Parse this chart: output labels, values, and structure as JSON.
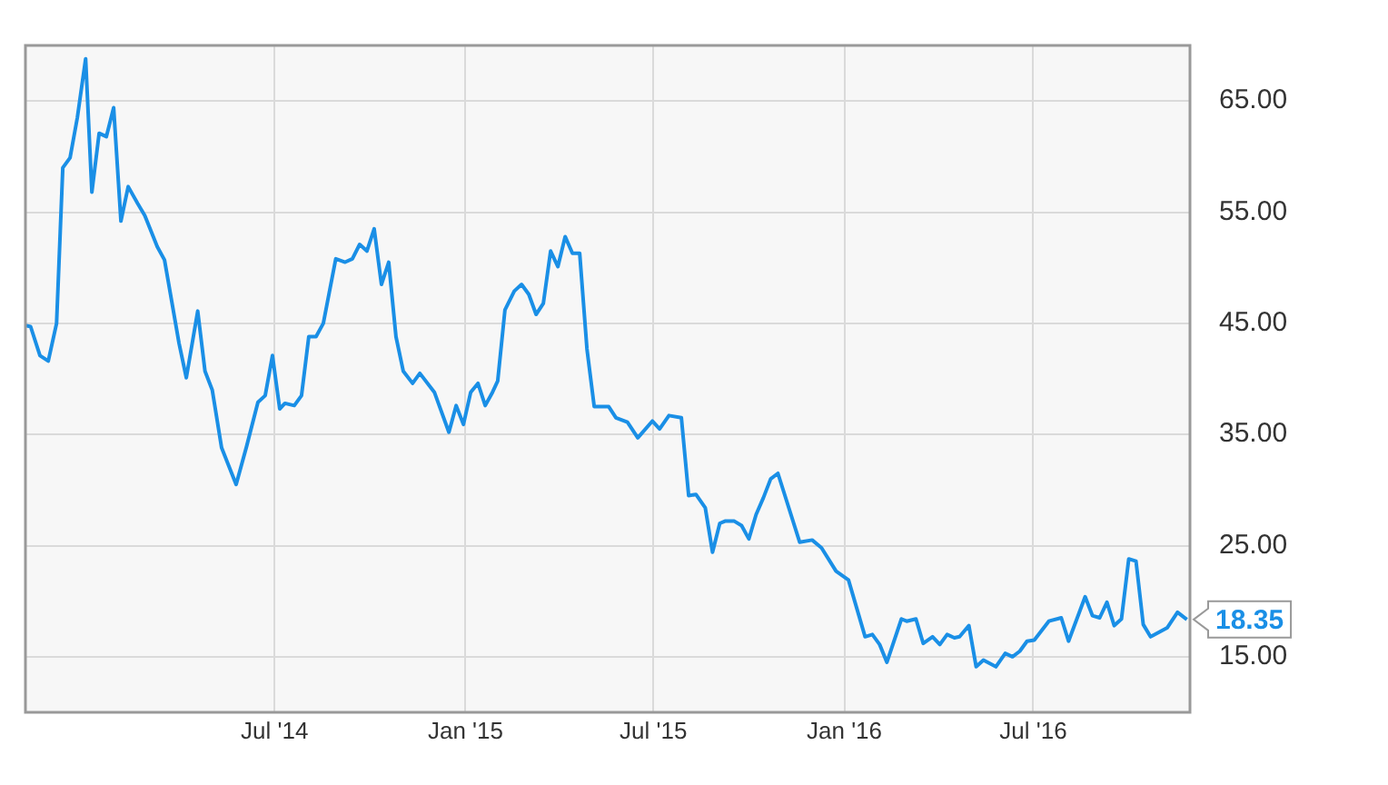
{
  "chart_data": {
    "type": "line",
    "x": [
      "2013-11-03",
      "2013-11-08",
      "2013-11-17",
      "2013-11-25",
      "2013-12-03",
      "2013-12-09",
      "2013-12-16",
      "2013-12-23",
      "2013-12-31",
      "2014-01-06",
      "2014-01-13",
      "2014-01-20",
      "2014-01-27",
      "2014-02-03",
      "2014-02-10",
      "2014-02-19",
      "2014-02-26",
      "2014-03-10",
      "2014-03-17",
      "2014-03-31",
      "2014-04-07",
      "2014-04-18",
      "2014-04-25",
      "2014-05-02",
      "2014-05-11",
      "2014-05-25",
      "2014-06-04",
      "2014-06-15",
      "2014-06-22",
      "2014-06-29",
      "2014-07-06",
      "2014-07-11",
      "2014-07-20",
      "2014-07-27",
      "2014-08-03",
      "2014-08-10",
      "2014-08-17",
      "2014-08-29",
      "2014-09-07",
      "2014-09-14",
      "2014-09-21",
      "2014-09-28",
      "2014-10-05",
      "2014-10-12",
      "2014-10-19",
      "2014-10-26",
      "2014-11-02",
      "2014-11-11",
      "2014-11-18",
      "2014-12-02",
      "2014-12-16",
      "2014-12-23",
      "2014-12-30",
      "2015-01-06",
      "2015-01-13",
      "2015-01-20",
      "2015-01-27",
      "2015-02-01",
      "2015-02-08",
      "2015-02-17",
      "2015-02-24",
      "2015-03-03",
      "2015-03-10",
      "2015-03-17",
      "2015-03-24",
      "2015-03-31",
      "2015-04-07",
      "2015-04-14",
      "2015-04-21",
      "2015-04-28",
      "2015-05-05",
      "2015-05-19",
      "2015-05-26",
      "2015-06-06",
      "2015-06-16",
      "2015-06-30",
      "2015-07-07",
      "2015-07-16",
      "2015-07-28",
      "2015-08-04",
      "2015-08-11",
      "2015-08-20",
      "2015-08-27",
      "2015-09-03",
      "2015-09-08",
      "2015-09-17",
      "2015-09-24",
      "2015-10-01",
      "2015-10-08",
      "2015-10-15",
      "2015-10-22",
      "2015-10-29",
      "2015-11-19",
      "2015-12-01",
      "2015-12-10",
      "2015-12-24",
      "2016-01-05",
      "2016-01-21",
      "2016-01-28",
      "2016-02-04",
      "2016-02-11",
      "2016-02-25",
      "2016-03-01",
      "2016-03-10",
      "2016-03-17",
      "2016-03-26",
      "2016-04-02",
      "2016-04-09",
      "2016-04-16",
      "2016-04-21",
      "2016-04-30",
      "2016-05-07",
      "2016-05-14",
      "2016-05-26",
      "2016-06-04",
      "2016-06-11",
      "2016-06-18",
      "2016-06-25",
      "2016-07-02",
      "2016-07-16",
      "2016-07-28",
      "2016-08-04",
      "2016-08-20",
      "2016-08-27",
      "2016-09-03",
      "2016-09-10",
      "2016-09-17",
      "2016-09-24",
      "2016-10-01",
      "2016-10-08",
      "2016-10-15",
      "2016-10-22",
      "2016-11-07",
      "2016-11-17",
      "2016-11-26"
    ],
    "series": [
      {
        "color": "#1a8fe6",
        "values": [
          44.8,
          44.7,
          42.1,
          41.6,
          45.0,
          59.0,
          59.9,
          63.5,
          68.8,
          56.8,
          62.1,
          61.8,
          64.4,
          54.2,
          57.3,
          55.8,
          54.7,
          51.9,
          50.7,
          43.2,
          40.1,
          46.1,
          40.7,
          39.0,
          33.8,
          30.5,
          33.9,
          37.9,
          38.5,
          42.1,
          37.3,
          37.8,
          37.6,
          38.5,
          43.8,
          43.8,
          45.0,
          50.8,
          50.5,
          50.8,
          52.1,
          51.5,
          53.5,
          48.5,
          50.5,
          43.8,
          40.7,
          39.6,
          40.5,
          38.8,
          35.2,
          37.6,
          35.9,
          38.8,
          39.6,
          37.6,
          38.8,
          39.8,
          46.2,
          47.9,
          48.5,
          47.6,
          45.8,
          46.8,
          51.5,
          50.1,
          52.8,
          51.3,
          51.3,
          42.7,
          37.5,
          37.5,
          36.5,
          36.1,
          34.7,
          36.2,
          35.5,
          36.7,
          36.5,
          29.5,
          29.6,
          28.4,
          24.4,
          27.0,
          27.2,
          27.2,
          26.8,
          25.6,
          27.8,
          29.3,
          31.0,
          31.5,
          25.3,
          25.5,
          24.8,
          22.7,
          21.9,
          16.8,
          17.0,
          16.1,
          14.5,
          18.4,
          18.2,
          18.4,
          16.2,
          16.8,
          16.1,
          17.0,
          16.7,
          16.8,
          17.8,
          14.1,
          14.7,
          14.1,
          15.3,
          15.0,
          15.5,
          16.4,
          16.5,
          18.2,
          18.5,
          16.4,
          20.4,
          18.7,
          18.5,
          19.9,
          17.8,
          18.4,
          23.8,
          23.6,
          17.9,
          16.8,
          17.6,
          19.0,
          18.35
        ]
      }
    ],
    "xlim": [
      "2013-11-03",
      "2016-11-29"
    ],
    "xticks": [
      {
        "value": "2014-07-01",
        "label": "Jul '14"
      },
      {
        "value": "2015-01-01",
        "label": "Jan '15"
      },
      {
        "value": "2015-07-01",
        "label": "Jul '15"
      },
      {
        "value": "2016-01-01",
        "label": "Jan '16"
      },
      {
        "value": "2016-07-01",
        "label": "Jul '16"
      }
    ],
    "ylim": [
      10,
      70
    ],
    "yticks": [
      {
        "value": 15,
        "label": "15.00"
      },
      {
        "value": 25,
        "label": "25.00"
      },
      {
        "value": 35,
        "label": "35.00"
      },
      {
        "value": 45,
        "label": "45.00"
      },
      {
        "value": 55,
        "label": "55.00"
      },
      {
        "value": 65,
        "label": "65.00"
      }
    ],
    "grid": true,
    "legend": false,
    "marker": "none",
    "line_style": "solid",
    "annotations": [
      {
        "text": "18.35",
        "x": "2016-11-26",
        "y": 18.35
      }
    ]
  }
}
